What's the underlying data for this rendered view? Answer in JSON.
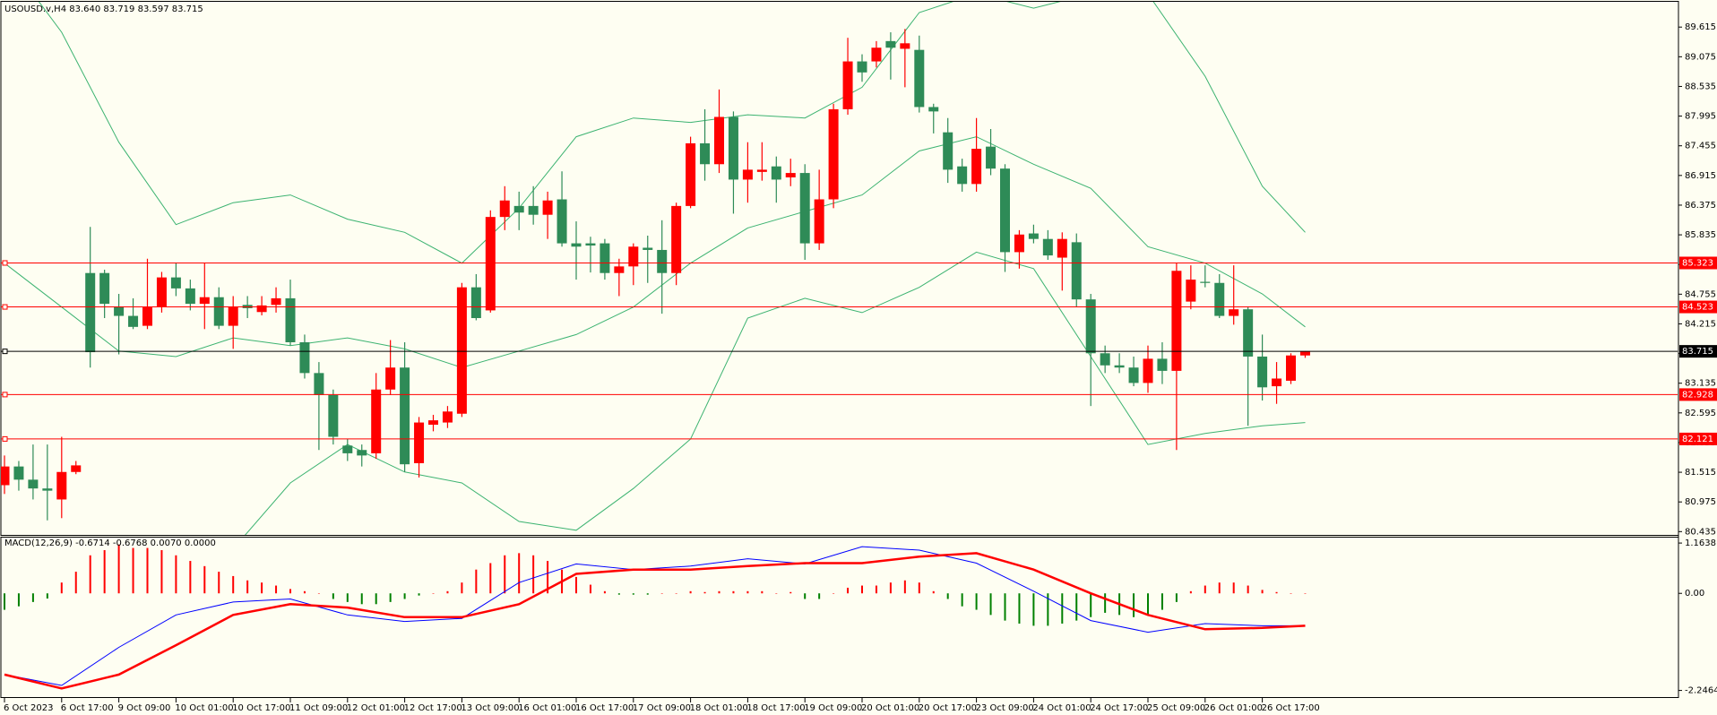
{
  "chart_data": [
    {
      "type": "candlestick",
      "title": "USOUSD.v,H4  83.640 83.719 83.597 83.715",
      "categories": [
        "6 Oct 2023",
        null,
        null,
        null,
        "6 Oct 17:00",
        null,
        null,
        null,
        "9 Oct 09:00",
        null,
        null,
        null,
        "10 Oct 01:00",
        null,
        null,
        null,
        "10 Oct 17:00",
        null,
        null,
        null,
        "11 Oct 09:00",
        null,
        null,
        null,
        "12 Oct 01:00",
        null,
        null,
        null,
        "12 Oct 17:00",
        null,
        null,
        null,
        "13 Oct 09:00",
        null,
        null,
        null,
        "16 Oct 01:00",
        null,
        null,
        null,
        "16 Oct 17:00",
        null,
        null,
        null,
        "17 Oct 09:00",
        null,
        null,
        null,
        "18 Oct 01:00",
        null,
        null,
        null,
        "18 Oct 17:00",
        null,
        null,
        null,
        "19 Oct 09:00",
        null,
        null,
        null,
        "20 Oct 01:00",
        null,
        null,
        null,
        "20 Oct 17:00",
        null,
        null,
        null,
        "23 Oct 09:00",
        null,
        null,
        null,
        "24 Oct 01:00",
        null,
        null,
        null,
        "24 Oct 17:00",
        null,
        null,
        null,
        "25 Oct 09:00",
        null,
        null,
        null,
        "26 Oct 01:00",
        null,
        null,
        null,
        "26 Oct 17:00",
        null,
        null,
        null
      ],
      "open": [
        81.28,
        81.62,
        81.38,
        81.22,
        81.02,
        81.52,
        85.14,
        85.14,
        84.52,
        84.36,
        84.18,
        84.52,
        85.06,
        84.86,
        84.58,
        84.7,
        84.18,
        84.56,
        84.43,
        84.56,
        84.68,
        83.88,
        83.32,
        82.92,
        82.0,
        81.92,
        81.86,
        83.02,
        83.42,
        81.68,
        82.38,
        82.42,
        82.58,
        84.88,
        84.46,
        86.16,
        86.36,
        86.36,
        86.2,
        86.48,
        85.68,
        85.68,
        85.68,
        85.14,
        85.26,
        85.6,
        85.56,
        85.14,
        86.36,
        87.5,
        87.12,
        87.98,
        86.84,
        86.98,
        87.08,
        86.88,
        86.96,
        85.68,
        86.48,
        88.12,
        88.99,
        88.99,
        89.36,
        89.22,
        89.2,
        88.16,
        87.7,
        87.08,
        86.76,
        87.44,
        87.04,
        85.52,
        85.86,
        85.76,
        85.42,
        85.7,
        84.66,
        83.68,
        83.46,
        83.42,
        83.14,
        83.58,
        83.36,
        84.62,
        84.98,
        84.96,
        84.36,
        84.48,
        83.62,
        83.08,
        83.18,
        83.64
      ],
      "high": [
        81.82,
        81.72,
        82.02,
        82.02,
        82.16,
        81.72,
        85.98,
        85.2,
        84.76,
        84.68,
        85.4,
        85.16,
        85.32,
        85.02,
        85.32,
        84.88,
        84.72,
        84.72,
        84.72,
        84.88,
        85.02,
        84.02,
        83.52,
        83.02,
        82.12,
        82.02,
        83.32,
        83.92,
        83.88,
        82.52,
        82.56,
        82.72,
        84.96,
        85.12,
        86.28,
        86.72,
        86.62,
        86.72,
        86.62,
        86.99,
        86.08,
        85.8,
        85.76,
        85.4,
        85.68,
        85.82,
        86.1,
        86.42,
        87.62,
        88.12,
        88.48,
        88.08,
        87.52,
        87.52,
        87.26,
        87.22,
        87.12,
        87.02,
        88.22,
        89.42,
        89.12,
        89.36,
        89.52,
        89.58,
        89.46,
        88.22,
        87.96,
        87.22,
        87.96,
        87.76,
        87.12,
        85.92,
        86.02,
        85.92,
        85.88,
        85.86,
        84.76,
        83.82,
        83.68,
        83.62,
        83.82,
        83.88,
        85.32,
        85.28,
        85.28,
        85.12,
        85.28,
        84.52,
        84.02,
        83.52,
        83.68,
        83.719
      ],
      "low": [
        81.12,
        81.18,
        81.02,
        80.64,
        80.68,
        81.48,
        83.42,
        84.32,
        83.66,
        84.12,
        84.12,
        84.42,
        84.72,
        84.46,
        84.12,
        84.12,
        83.76,
        84.32,
        84.37,
        84.42,
        83.82,
        83.22,
        81.92,
        82.02,
        81.72,
        81.62,
        81.76,
        82.92,
        81.52,
        81.42,
        82.26,
        82.32,
        82.52,
        84.28,
        84.42,
        85.92,
        85.92,
        86.02,
        85.76,
        85.62,
        85.02,
        85.15,
        85.02,
        84.72,
        84.92,
        84.96,
        84.4,
        84.92,
        86.32,
        86.82,
        86.96,
        86.22,
        86.42,
        86.82,
        86.42,
        86.72,
        85.38,
        85.56,
        86.32,
        88.02,
        88.62,
        88.88,
        88.66,
        88.52,
        88.06,
        87.68,
        86.78,
        86.62,
        86.62,
        86.92,
        85.16,
        85.22,
        85.68,
        85.38,
        84.82,
        84.52,
        82.72,
        83.32,
        83.32,
        83.08,
        82.96,
        83.12,
        81.92,
        84.48,
        84.88,
        84.32,
        84.2,
        82.36,
        82.82,
        82.76,
        83.12,
        83.597
      ],
      "close": [
        81.62,
        81.38,
        81.22,
        81.18,
        81.52,
        81.64,
        83.7,
        84.58,
        84.36,
        84.16,
        84.52,
        85.06,
        84.86,
        84.58,
        84.7,
        84.18,
        84.52,
        84.5,
        84.55,
        84.68,
        83.88,
        83.32,
        82.92,
        82.16,
        81.86,
        81.82,
        83.02,
        83.42,
        81.66,
        82.42,
        82.46,
        82.62,
        84.88,
        84.32,
        86.16,
        86.46,
        86.24,
        86.2,
        86.46,
        85.68,
        85.62,
        85.64,
        85.14,
        85.26,
        85.62,
        85.56,
        85.14,
        86.36,
        87.5,
        87.12,
        87.98,
        86.84,
        87.02,
        87.02,
        86.84,
        86.96,
        85.68,
        86.48,
        88.12,
        88.99,
        88.79,
        89.24,
        89.24,
        89.32,
        88.16,
        88.08,
        87.02,
        86.76,
        87.4,
        87.04,
        85.52,
        85.84,
        85.76,
        85.46,
        85.76,
        84.66,
        83.68,
        83.46,
        83.42,
        83.14,
        83.58,
        83.36,
        85.18,
        85.02,
        84.96,
        84.36,
        84.48,
        83.62,
        83.06,
        83.22,
        83.64,
        83.715
      ],
      "up_color": "#ff0000",
      "down_color": "#2e8b57",
      "bands": {
        "color": "#3cb371",
        "x": [
          0,
          4,
          8,
          12,
          16,
          20,
          24,
          28,
          32,
          36,
          40,
          44,
          48,
          52,
          56,
          60,
          64,
          68,
          72,
          76,
          80,
          84,
          88,
          91
        ],
        "upper": [
          90.92,
          89.52,
          87.52,
          86.02,
          86.42,
          86.56,
          86.12,
          85.88,
          85.32,
          86.32,
          87.62,
          87.96,
          87.88,
          88.02,
          87.96,
          88.52,
          89.88,
          90.22,
          89.96,
          90.22,
          90.22,
          88.72,
          86.72,
          85.88
        ],
        "middle": [
          85.32,
          84.52,
          83.72,
          83.62,
          83.96,
          83.82,
          83.96,
          83.76,
          83.42,
          83.72,
          84.02,
          84.52,
          85.32,
          85.96,
          86.26,
          86.56,
          87.36,
          87.62,
          87.12,
          86.68,
          85.62,
          85.32,
          84.76,
          84.16
        ],
        "lower": [
          79.72,
          78.92,
          78.92,
          78.92,
          80.12,
          81.32,
          82.02,
          81.52,
          81.32,
          80.62,
          80.46,
          81.22,
          82.12,
          84.32,
          84.68,
          84.42,
          84.88,
          85.52,
          85.22,
          83.62,
          82.02,
          82.22,
          82.36,
          82.42
        ]
      },
      "levels": [
        {
          "value": 85.323,
          "color": "#ff0000"
        },
        {
          "value": 84.523,
          "color": "#ff0000"
        },
        {
          "value": 82.928,
          "color": "#ff0000"
        },
        {
          "value": 82.121,
          "color": "#ff0000"
        },
        {
          "value": 83.715,
          "color": "#000000"
        }
      ],
      "ylim": [
        80.375,
        90.075
      ],
      "yticks": [
        80.435,
        80.975,
        81.515,
        82.055,
        82.595,
        83.135,
        83.675,
        84.215,
        84.755,
        85.295,
        85.835,
        86.375,
        86.915,
        87.455,
        87.995,
        88.535,
        89.075,
        89.615
      ]
    },
    {
      "type": "macd",
      "title": "MACD(12,26,9) -0.6714 -0.6768 0.0070 0.0000",
      "histogram": [
        -0.38,
        -0.3,
        -0.2,
        -0.12,
        0.25,
        0.5,
        0.88,
        1.0,
        1.13,
        1.05,
        1.05,
        1.0,
        0.88,
        0.75,
        0.63,
        0.5,
        0.4,
        0.3,
        0.25,
        0.18,
        0.1,
        0.05,
        0.0,
        -0.13,
        -0.2,
        -0.25,
        -0.25,
        -0.2,
        -0.13,
        -0.05,
        0.0,
        0.05,
        0.25,
        0.55,
        0.7,
        0.88,
        0.93,
        0.88,
        0.75,
        0.55,
        0.38,
        0.2,
        0.05,
        -0.03,
        -0.03,
        -0.03,
        0.0,
        0.0,
        0.05,
        0.03,
        0.05,
        0.05,
        0.05,
        0.05,
        0.0,
        0.03,
        -0.13,
        -0.13,
        0.0,
        0.13,
        0.18,
        0.18,
        0.25,
        0.3,
        0.25,
        0.05,
        -0.13,
        -0.3,
        -0.38,
        -0.5,
        -0.63,
        -0.7,
        -0.75,
        -0.75,
        -0.7,
        -0.63,
        -0.55,
        -0.45,
        -0.5,
        -0.55,
        -0.5,
        -0.38,
        -0.2,
        0.05,
        0.18,
        0.25,
        0.25,
        0.18,
        0.08,
        0.03,
        0.0,
        0.0
      ],
      "up_color": "#ff0000",
      "down_color": "#008000",
      "x": [
        0,
        4,
        8,
        12,
        16,
        20,
        24,
        28,
        32,
        36,
        40,
        44,
        48,
        52,
        56,
        60,
        64,
        68,
        72,
        76,
        80,
        84,
        88,
        91
      ],
      "lines": [
        {
          "color": "#0000ff",
          "width": 1,
          "values": [
            -1.88,
            -2.13,
            -1.25,
            -0.5,
            -0.2,
            -0.13,
            -0.5,
            -0.65,
            -0.58,
            0.25,
            0.68,
            0.55,
            0.63,
            0.8,
            0.68,
            1.08,
            1.0,
            0.7,
            0.05,
            -0.63,
            -0.9,
            -0.7,
            -0.75,
            -0.75
          ]
        },
        {
          "color": "#ff0000",
          "width": 2.5,
          "values": [
            -1.88,
            -2.2,
            -1.88,
            -1.2,
            -0.5,
            -0.25,
            -0.33,
            -0.55,
            -0.55,
            -0.25,
            0.45,
            0.55,
            0.55,
            0.63,
            0.7,
            0.7,
            0.85,
            0.93,
            0.55,
            0.0,
            -0.5,
            -0.83,
            -0.8,
            -0.75
          ]
        }
      ],
      "ylim": [
        -2.4,
        1.29
      ],
      "yticks": [
        -2.2464,
        {
          "value": 0,
          "label": "0.00"
        },
        1.1638
      ]
    }
  ]
}
